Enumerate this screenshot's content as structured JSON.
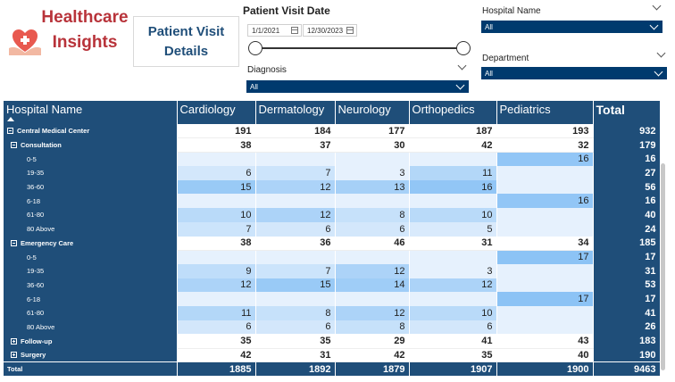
{
  "brand": {
    "line1": "Healthcare",
    "line2": "Insights"
  },
  "title": {
    "line1": "Patient Visit",
    "line2": "Details"
  },
  "date_slicer": {
    "title": "Patient Visit Date",
    "start": "1/1/2021",
    "end": "12/30/2023"
  },
  "diagnosis": {
    "label": "Diagnosis",
    "value": "All"
  },
  "hospital": {
    "label": "Hospital Name",
    "value": "All"
  },
  "department": {
    "label": "Department",
    "value": "All"
  },
  "matrix": {
    "corner": "Hospital Name",
    "columns": [
      "Cardiology",
      "Dermatology",
      "Neurology",
      "Orthopedics",
      "Pediatrics"
    ],
    "total_header": "Total",
    "rows": [
      {
        "level": 0,
        "label": "Central Medical Center",
        "values": [
          "191",
          "184",
          "177",
          "187",
          "193"
        ],
        "total": "932",
        "expander": "minus"
      },
      {
        "level": 1,
        "label": "Consultation",
        "values": [
          "38",
          "37",
          "30",
          "42",
          "32"
        ],
        "total": "179",
        "expander": "minus"
      },
      {
        "level": 2,
        "label": "0-5",
        "values": [
          "",
          "",
          "",
          "",
          "16"
        ],
        "total": "16"
      },
      {
        "level": 2,
        "label": "19-35",
        "values": [
          "6",
          "7",
          "3",
          "11",
          ""
        ],
        "total": "27"
      },
      {
        "level": 2,
        "label": "36-60",
        "values": [
          "15",
          "12",
          "13",
          "16",
          ""
        ],
        "total": "56"
      },
      {
        "level": 2,
        "label": "6-18",
        "values": [
          "",
          "",
          "",
          "",
          "16"
        ],
        "total": "16"
      },
      {
        "level": 2,
        "label": "61-80",
        "values": [
          "10",
          "12",
          "8",
          "10",
          ""
        ],
        "total": "40"
      },
      {
        "level": 2,
        "label": "80 Above",
        "values": [
          "7",
          "6",
          "6",
          "5",
          ""
        ],
        "total": "24"
      },
      {
        "level": 1,
        "label": "Emergency Care",
        "values": [
          "38",
          "36",
          "46",
          "31",
          "34"
        ],
        "total": "185",
        "expander": "minus"
      },
      {
        "level": 2,
        "label": "0-5",
        "values": [
          "",
          "",
          "",
          "",
          "17"
        ],
        "total": "17"
      },
      {
        "level": 2,
        "label": "19-35",
        "values": [
          "9",
          "7",
          "12",
          "3",
          ""
        ],
        "total": "31"
      },
      {
        "level": 2,
        "label": "36-60",
        "values": [
          "12",
          "15",
          "14",
          "12",
          ""
        ],
        "total": "53"
      },
      {
        "level": 2,
        "label": "6-18",
        "values": [
          "",
          "",
          "",
          "",
          "17"
        ],
        "total": "17"
      },
      {
        "level": 2,
        "label": "61-80",
        "values": [
          "11",
          "8",
          "12",
          "10",
          ""
        ],
        "total": "41"
      },
      {
        "level": 2,
        "label": "80 Above",
        "values": [
          "6",
          "6",
          "8",
          "6",
          ""
        ],
        "total": "26"
      },
      {
        "level": 1,
        "label": "Follow-up",
        "values": [
          "35",
          "35",
          "29",
          "41",
          "43"
        ],
        "total": "183",
        "expander": "plus"
      },
      {
        "level": 1,
        "label": "Surgery",
        "values": [
          "42",
          "31",
          "42",
          "35",
          "40"
        ],
        "total": "190",
        "expander": "plus"
      }
    ],
    "grand_total": {
      "label": "Total",
      "values": [
        "1885",
        "1892",
        "1879",
        "1907",
        "1900"
      ],
      "total": "9463"
    }
  },
  "colors": {
    "header": "#1f4e79",
    "slicer": "#003a6e",
    "brand": "#b8333a",
    "heat_low": "#e6f1fd",
    "heat_high": "#8cc3f5"
  }
}
